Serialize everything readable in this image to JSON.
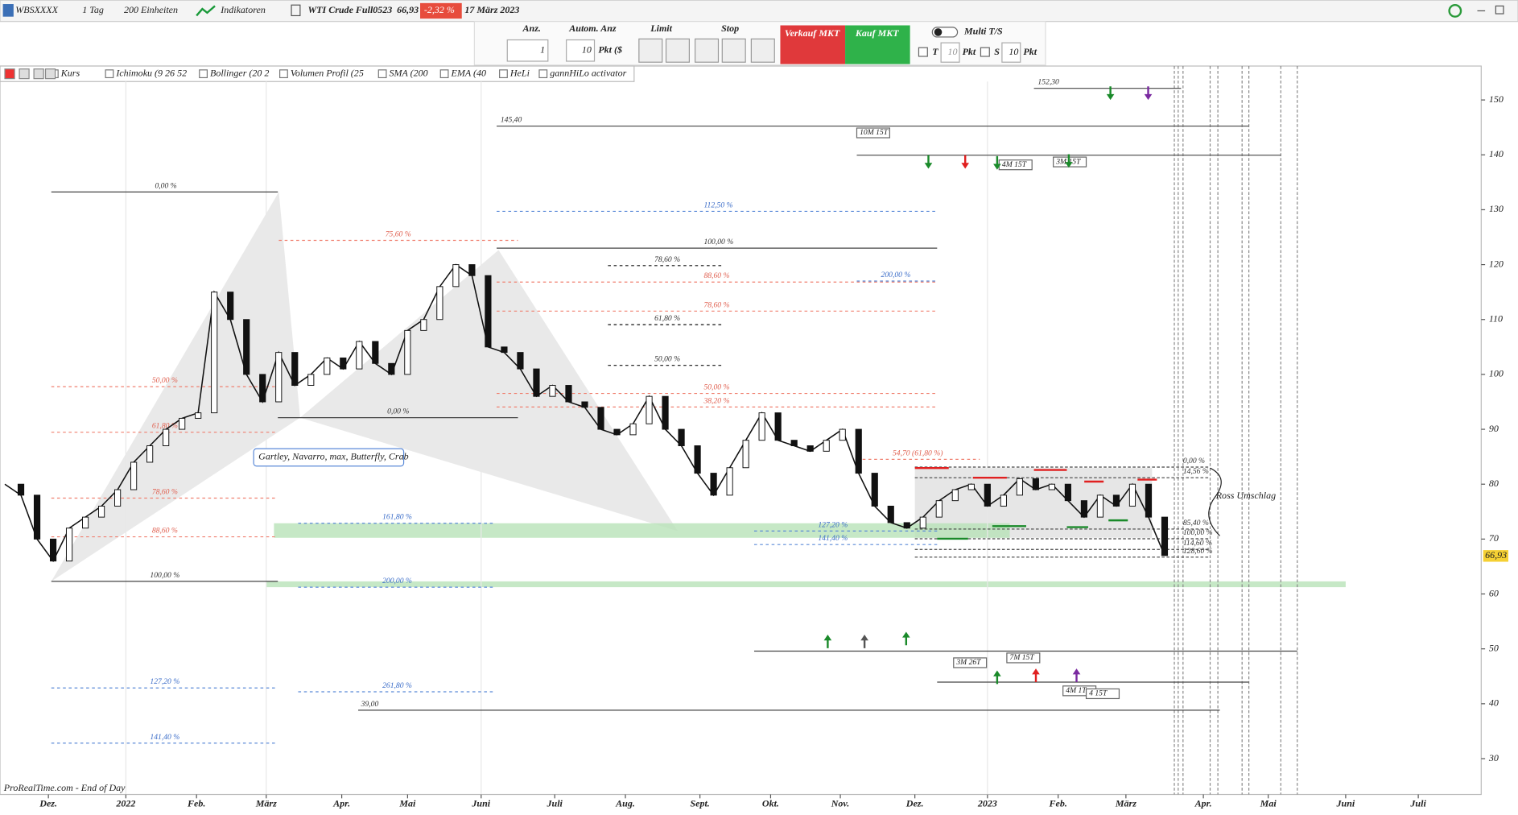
{
  "toolbar": {
    "symbol": "WBSXXXX",
    "period": "1 Tag",
    "units": "200 Einheiten",
    "indicators": "Indikatoren",
    "instrument": "WTI Crude Full0523",
    "price": "66,93",
    "change": "-2,32 %",
    "date": "17 März 2023"
  },
  "order_panel": {
    "qty_label": "Anz.",
    "qty": "1",
    "auto_label": "Autom. Anz",
    "auto_qty": "10",
    "auto_unit": "Pkt ($",
    "limit": "Limit",
    "stop": "Stop",
    "sell": "Verkauf MKT",
    "buy": "Kauf MKT",
    "multi": "Multi T/S",
    "t_label": "T",
    "t_value": "10",
    "t_unit": "Pkt",
    "s_label": "S",
    "s_value": "10",
    "s_unit": "Pkt"
  },
  "indicator_bar": [
    "Kurs",
    "Ichimoku (9 26 52",
    "Bollinger (20 2",
    "Volumen Profil (25",
    "SMA (200",
    "EMA (40",
    "HeLi",
    "gannHiLo activator"
  ],
  "chart": {
    "ylim": [
      30,
      150
    ],
    "yticks": [
      30,
      40,
      50,
      60,
      70,
      80,
      90,
      100,
      110,
      120,
      130,
      140,
      150
    ],
    "x_labels": [
      "Dez.",
      "2022",
      "Feb.",
      "März",
      "Apr.",
      "Mai",
      "Juni",
      "Juli",
      "Aug.",
      "Sept.",
      "Okt.",
      "Nov.",
      "Dez.",
      "2023",
      "Feb.",
      "März",
      "Apr.",
      "Mai",
      "Juni",
      "Juli"
    ],
    "price_series": [
      80,
      78,
      70,
      66,
      72,
      74,
      76,
      79,
      84,
      87,
      90,
      92,
      93,
      115,
      110,
      100,
      95,
      104,
      98,
      100,
      103,
      101,
      106,
      102,
      100,
      108,
      110,
      116,
      120,
      118,
      105,
      104,
      101,
      96,
      98,
      95,
      94,
      90,
      89,
      91,
      96,
      90,
      87,
      82,
      78,
      83,
      88,
      93,
      88,
      87,
      86,
      88,
      90,
      82,
      76,
      73,
      72,
      74,
      77,
      79,
      80,
      76,
      78,
      81,
      79,
      80,
      77,
      74,
      78,
      76,
      80,
      74,
      67
    ],
    "last_price": 66.93,
    "last_price_label": "66,93",
    "levels": [
      "152,30",
      "145,40",
      "0,00 %",
      "112,50 %",
      "75,60 %",
      "100,00 %",
      "78,60 %",
      "88,60 %",
      "200,00 %",
      "78,60 %",
      "61,80 %",
      "50,00 %",
      "50,00 %",
      "50,00 %",
      "38,20 %",
      "0,00 %",
      "61,80 %",
      "54,70 (61,80 %)",
      "78,60 %",
      "161,80 %",
      "127,20 %",
      "88,60 %",
      "141,40 %",
      "100,00 %",
      "200,00 %",
      "127,20 %",
      "261,80 %",
      "141,40 %",
      "39,00",
      "0,00 %",
      "14,56 %",
      "85,40 %",
      "100,00 %",
      "114,60 %",
      "128,60 %"
    ],
    "time_boxes": [
      "10M 15T",
      "4M 15T",
      "3M 15T",
      "3M 26T",
      "7M 15T",
      "4M 1T",
      "4 15T"
    ],
    "pattern_label": "Gartley, Navarro, max, Butterfly, Crab",
    "ross_label": "Ross Umschlag",
    "footer": "ProRealTime.com - End of Day"
  }
}
